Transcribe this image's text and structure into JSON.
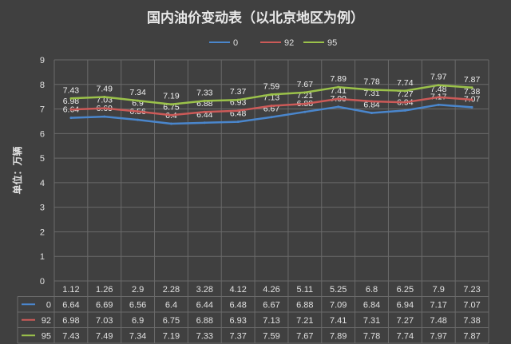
{
  "chart_data": {
    "type": "line",
    "title": "国内油价变动表（以北京地区为例）",
    "ylabel": "单位：万辆",
    "xlabel": "",
    "ylim": [
      0,
      9
    ],
    "yticks": [
      0,
      1,
      2,
      3,
      4,
      5,
      6,
      7,
      8,
      9
    ],
    "grid": true,
    "legend_position": "top-center",
    "categories": [
      "1.12",
      "1.26",
      "2.9",
      "2.28",
      "3.28",
      "4.12",
      "4.26",
      "5.11",
      "5.25",
      "6.8",
      "6.25",
      "7.9",
      "7.23"
    ],
    "series": [
      {
        "name": "0",
        "color": "#4a86cc",
        "values": [
          6.64,
          6.69,
          6.56,
          6.4,
          6.44,
          6.48,
          6.67,
          6.88,
          7.09,
          6.84,
          6.94,
          7.17,
          7.07
        ]
      },
      {
        "name": "92",
        "color": "#cc5a58",
        "values": [
          6.98,
          7.03,
          6.9,
          6.75,
          6.88,
          6.93,
          7.13,
          7.21,
          7.41,
          7.31,
          7.27,
          7.48,
          7.38
        ]
      },
      {
        "name": "95",
        "color": "#9bc24a",
        "values": [
          7.43,
          7.49,
          7.34,
          7.19,
          7.33,
          7.37,
          7.59,
          7.67,
          7.89,
          7.78,
          7.74,
          7.97,
          7.87
        ]
      }
    ],
    "data_table": true
  }
}
